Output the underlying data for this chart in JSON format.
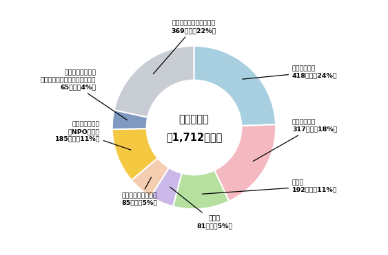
{
  "title_line1": "参入法人数",
  "title_line2": "（1,712法人）",
  "total": 1712,
  "segments": [
    {
      "label_l1": "食品関連産業",
      "label_l2": "418法人（24%）",
      "value": 418,
      "color": "#a8cfe0"
    },
    {
      "label_l1": "農業・畜産業",
      "label_l2": "317法人（18%）",
      "value": 317,
      "color": "#f4b8c1"
    },
    {
      "label_l1": "建設業",
      "label_l2": "192法人（11%）",
      "value": 192,
      "color": "#b5e0a0"
    },
    {
      "label_l1": "製造業",
      "label_l2": "81法人（5%）",
      "value": 81,
      "color": "#c9b8e8"
    },
    {
      "label_l1": "その他卸売・小売業",
      "label_l2": "85法人（5%）",
      "value": 85,
      "color": "#f5cdb0"
    },
    {
      "label_l1": "特定非営利活動\n（NPO法人）",
      "label_l2": "185法人（11%）",
      "value": 185,
      "color": "#f5c842"
    },
    {
      "label_l1": "教育・医療・福祉\n（学校・医療・社会福祉法人）",
      "label_l2": "65法人（4%）",
      "value": 65,
      "color": "#8099c0"
    },
    {
      "label_l1": "その他（サービス業他）",
      "label_l2": "369法人（22%）",
      "value": 369,
      "color": "#c8cdd4"
    }
  ],
  "background_color": "#ffffff"
}
